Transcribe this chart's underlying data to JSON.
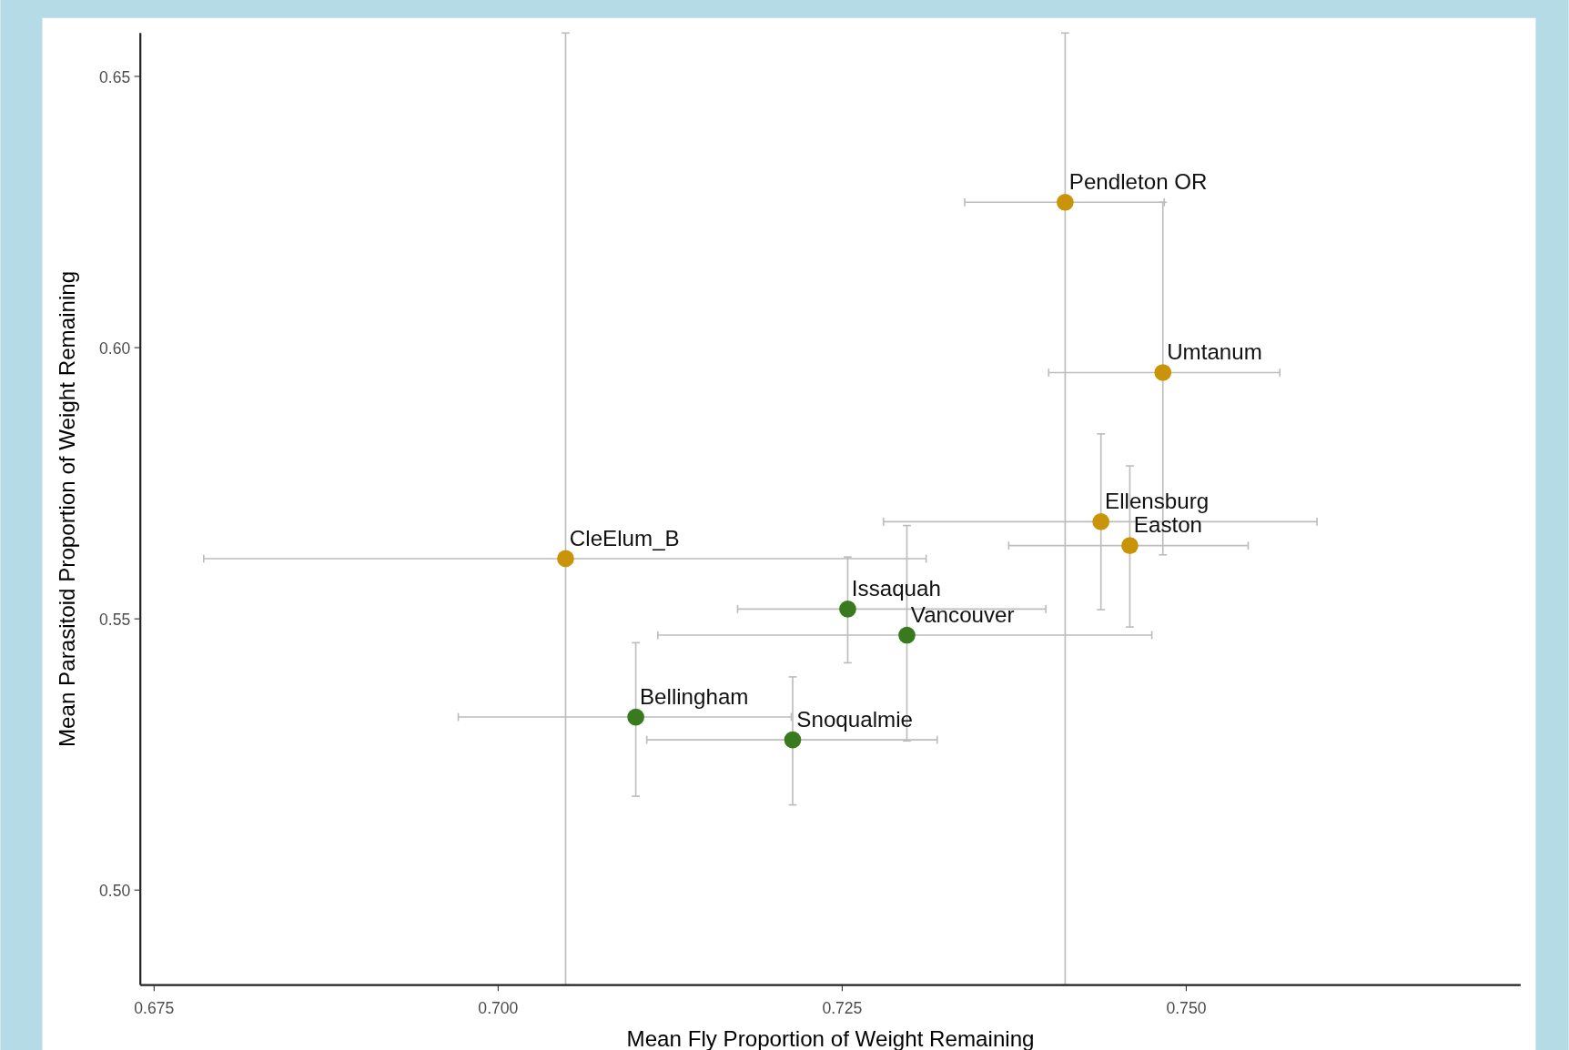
{
  "chart_data": {
    "type": "scatter",
    "xlabel": "Mean Fly Proportion of Weight Remaining",
    "ylabel": "Mean Parasitoid Proportion of Weight Remaining",
    "xlim": [
      0.674,
      0.7743
    ],
    "ylim": [
      0.4825,
      0.658
    ],
    "xticks": [
      0.675,
      {
        "value": 0.7,
        "label": "0.700"
      },
      0.725,
      {
        "value": 0.75,
        "label": "0.750"
      }
    ],
    "yticks": [
      {
        "value": 0.5,
        "label": "0.50"
      },
      0.55,
      {
        "value": 0.6,
        "label": "0.60"
      },
      0.65
    ],
    "grid": false,
    "marker": "circle",
    "series": [
      {
        "color": "#c9930a",
        "x": [
          0.7412,
          0.7483,
          0.7438,
          0.7459,
          0.7049
        ],
        "values": [
          0.6268,
          0.5954,
          0.5679,
          0.5635,
          0.5611
        ],
        "errors": [
          [
            0.4825,
            0.658
          ],
          [
            0.5618,
            0.6268
          ],
          [
            0.5517,
            0.5841
          ],
          [
            0.5485,
            0.5782
          ],
          [
            0.4825,
            0.658
          ]
        ],
        "xerrors": [
          [
            0.7339,
            0.7484
          ],
          [
            0.74,
            0.7568
          ],
          [
            0.728,
            0.7595
          ],
          [
            0.7371,
            0.7545
          ],
          [
            0.6786,
            0.7311
          ]
        ]
      },
      {
        "color": "#3a7a1e",
        "x": [
          0.7254,
          0.7297,
          0.71,
          0.7214
        ],
        "values": [
          0.5518,
          0.547,
          0.5319,
          0.5277
        ],
        "errors": [
          [
            0.5419,
            0.5614
          ],
          [
            0.5275,
            0.5672
          ],
          [
            0.5173,
            0.5456
          ],
          [
            0.5157,
            0.5393
          ]
        ],
        "xerrors": [
          [
            0.7174,
            0.7398
          ],
          [
            0.7116,
            0.7475
          ],
          [
            0.6971,
            0.7213
          ],
          [
            0.7108,
            0.7319
          ]
        ]
      }
    ],
    "annotations": [
      {
        "text": "Pendleton OR",
        "x": 0.7412,
        "y": 0.6268
      },
      {
        "text": "Umtanum",
        "x": 0.7483,
        "y": 0.5954
      },
      {
        "text": "Ellensburg",
        "x": 0.7438,
        "y": 0.5679
      },
      {
        "text": "Easton",
        "x": 0.7459,
        "y": 0.5635
      },
      {
        "text": "CleElum_B",
        "x": 0.7049,
        "y": 0.5611
      },
      {
        "text": "Issaquah",
        "x": 0.7254,
        "y": 0.5518
      },
      {
        "text": "Vancouver",
        "x": 0.7297,
        "y": 0.547
      },
      {
        "text": "Bellingham",
        "x": 0.71,
        "y": 0.5319
      },
      {
        "text": "Snoqualmie",
        "x": 0.7214,
        "y": 0.5277
      }
    ]
  }
}
